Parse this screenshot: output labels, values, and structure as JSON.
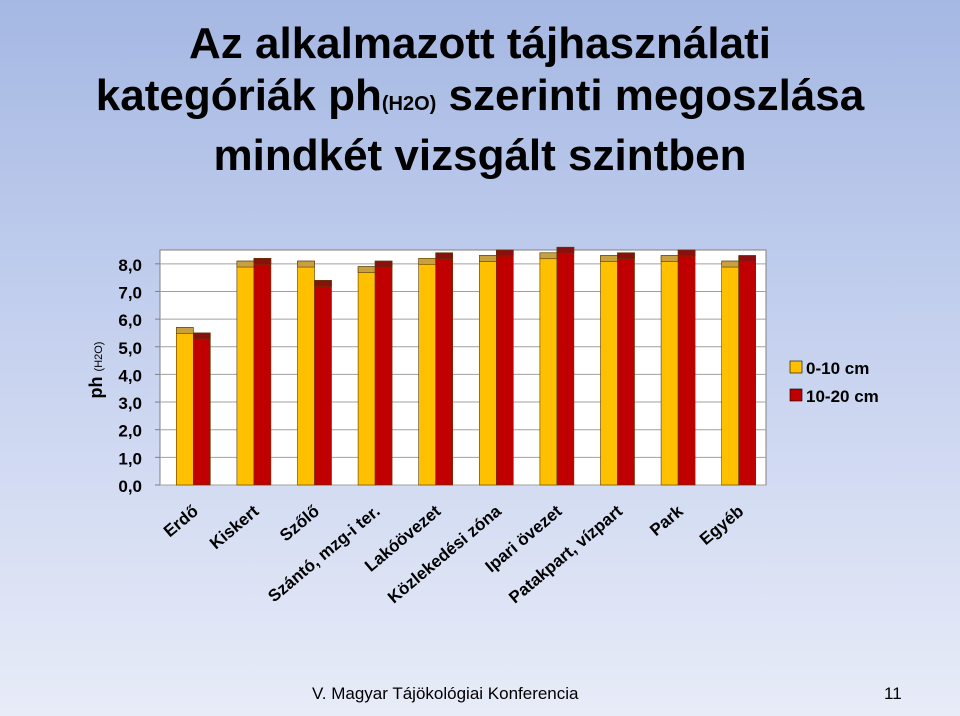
{
  "slide": {
    "title_line1": "Az alkalmazott tájhasználati",
    "title_line2_pre": "kategóriák ph",
    "title_line2_sub": "(H2O)",
    "title_line2_post": " szerinti megoszlása",
    "title_line3": "mindkét vizsgált szintben",
    "footer": "V. Magyar Tájökológiai Konferencia",
    "page_number": "11"
  },
  "chart_data": {
    "type": "bar",
    "ylabel_main": "ph",
    "ylabel_sub": "(H2O)",
    "ylim": [
      0,
      8.5
    ],
    "yticks": [
      "0,0",
      "1,0",
      "2,0",
      "3,0",
      "4,0",
      "5,0",
      "6,0",
      "7,0",
      "8,0"
    ],
    "ytick_values": [
      0,
      1,
      2,
      3,
      4,
      5,
      6,
      7,
      8
    ],
    "grid": true,
    "legend_position": "right",
    "categories": [
      "Erdő",
      "Kiskert",
      "Szőlő",
      "Szántó, mzg-i ter.",
      "Lakóövezet",
      "Közlekedési zóna",
      "Ipari övezet",
      "Patakpart, vízpart",
      "Park",
      "Egyéb"
    ],
    "series": [
      {
        "name": "0-10 cm",
        "color": "#ffc000",
        "values": [
          5.7,
          8.1,
          8.1,
          7.9,
          8.2,
          8.3,
          8.4,
          8.3,
          8.3,
          8.1
        ]
      },
      {
        "name": "10-20 cm",
        "color": "#c00000",
        "values": [
          5.5,
          8.2,
          7.4,
          8.1,
          8.4,
          8.5,
          8.6,
          8.4,
          8.5,
          8.3
        ]
      }
    ]
  }
}
